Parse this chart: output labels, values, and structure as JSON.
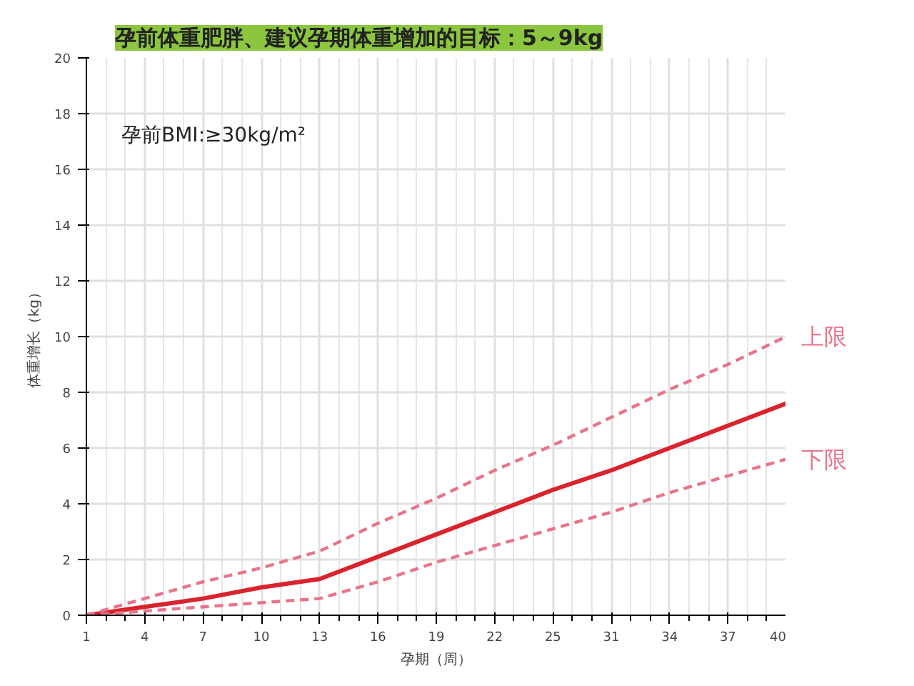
{
  "chart_data": {
    "type": "line",
    "title": "孕前体重肥胖、建议孕期体重增加的目标：5～9kg",
    "xlabel": "孕期（周）",
    "ylabel": "体重增长（kg）",
    "annotations": [
      "孕前BMI:≥30kg/m²"
    ],
    "categories": [
      "1",
      "4",
      "7",
      "10",
      "13",
      "16",
      "19",
      "22",
      "25",
      "31",
      "34",
      "37",
      "40"
    ],
    "ylim": [
      0,
      20
    ],
    "yticks": [
      0,
      2,
      4,
      6,
      8,
      10,
      12,
      14,
      16,
      18,
      20
    ],
    "grid": true,
    "marker": "none",
    "series": [
      {
        "color": "#d9232d",
        "line_style": "solid",
        "values": [
          0,
          0.3,
          0.6,
          1.0,
          1.3,
          2.1,
          2.9,
          3.7,
          4.5,
          5.2,
          6.0,
          6.8,
          7.6
        ]
      },
      {
        "name": "上限",
        "color": "#e8748a",
        "line_style": "dashed",
        "values": [
          0,
          0.6,
          1.2,
          1.7,
          2.3,
          3.3,
          4.2,
          5.2,
          6.1,
          7.1,
          8.1,
          9.0,
          10.0
        ]
      },
      {
        "name": "下限",
        "color": "#e8748a",
        "line_style": "dashed",
        "values": [
          0,
          0.15,
          0.3,
          0.45,
          0.6,
          1.2,
          1.9,
          2.5,
          3.1,
          3.7,
          4.4,
          5.0,
          5.6
        ]
      }
    ]
  }
}
